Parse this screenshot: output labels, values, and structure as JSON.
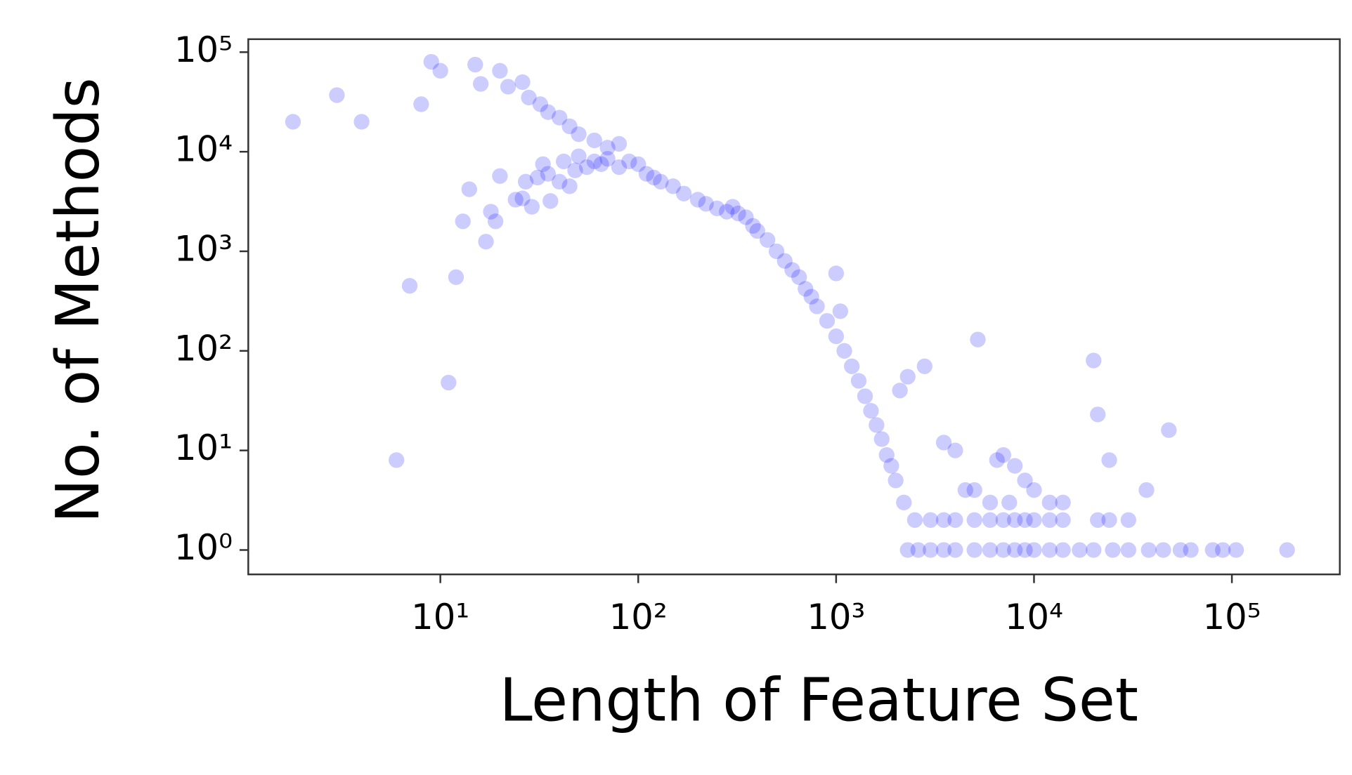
{
  "chart_data": {
    "type": "scatter",
    "x_label": "Length of Feature Set",
    "y_label": "No. of Methods",
    "xlog": true,
    "ylog": true,
    "color": "#0000ff",
    "xlim": [
      1.07,
      351000
    ],
    "ylim": [
      0.569,
      135000
    ],
    "xticks": [
      {
        "value": 10,
        "label": "10¹"
      },
      {
        "value": 100,
        "label": "10²"
      },
      {
        "value": 1000,
        "label": "10³"
      },
      {
        "value": 10000,
        "label": "10⁴"
      },
      {
        "value": 100000,
        "label": "10⁵"
      }
    ],
    "yticks": [
      {
        "value": 1,
        "label": "10⁰"
      },
      {
        "value": 10,
        "label": "10¹"
      },
      {
        "value": 100,
        "label": "10²"
      },
      {
        "value": 1000,
        "label": "10³"
      },
      {
        "value": 10000,
        "label": "10⁴"
      },
      {
        "value": 100000,
        "label": "10⁵"
      }
    ],
    "x": [
      1.8,
      3,
      4,
      8,
      9,
      10,
      15,
      16,
      20,
      22,
      26,
      28,
      32,
      35,
      40,
      45,
      50,
      60,
      70,
      80,
      6,
      7,
      11,
      12,
      13,
      14,
      17,
      18,
      19,
      20,
      24,
      26,
      27,
      29,
      31,
      33,
      35,
      36,
      40,
      42,
      45,
      48,
      50,
      55,
      60,
      65,
      70,
      80,
      90,
      100,
      110,
      120,
      130,
      150,
      170,
      200,
      220,
      250,
      280,
      300,
      320,
      350,
      380,
      400,
      450,
      500,
      550,
      600,
      650,
      700,
      750,
      800,
      900,
      1000,
      1000,
      1050,
      1100,
      1200,
      1300,
      1400,
      1500,
      1600,
      1700,
      1800,
      1900,
      2000,
      2200,
      2100,
      2300,
      2800,
      5200,
      20000,
      21000,
      48000,
      24000,
      37000,
      3500,
      4000,
      6500,
      7000,
      8000,
      9000,
      10000,
      12000,
      14000,
      4500,
      5000,
      6000,
      7500,
      2500,
      3000,
      3500,
      4000,
      5000,
      6000,
      7000,
      8000,
      9000,
      10000,
      12000,
      14000,
      21000,
      24000,
      30000,
      2300,
      2600,
      3000,
      3500,
      4000,
      5000,
      6000,
      7000,
      8000,
      9000,
      10000,
      12000,
      14000,
      17000,
      20000,
      25000,
      30000,
      38000,
      45000,
      55000,
      62000,
      80000,
      90000,
      105000,
      190000
    ],
    "values": [
      20000,
      37000,
      20000,
      30000,
      80000,
      65000,
      75000,
      48000,
      65000,
      45000,
      50000,
      35000,
      30000,
      25000,
      22000,
      18000,
      15000,
      13000,
      11000,
      12000,
      8,
      450,
      48,
      550,
      2000,
      4200,
      1250,
      2500,
      2000,
      5700,
      3300,
      3400,
      5000,
      2800,
      5500,
      7500,
      6000,
      3200,
      5000,
      8000,
      4500,
      6500,
      9000,
      7000,
      8000,
      7500,
      8500,
      7000,
      8000,
      7500,
      6000,
      5500,
      5000,
      4500,
      3800,
      3300,
      3000,
      2700,
      2500,
      2800,
      2400,
      2200,
      1800,
      1600,
      1300,
      1000,
      800,
      650,
      550,
      420,
      350,
      280,
      200,
      600,
      140,
      250,
      100,
      70,
      50,
      35,
      25,
      18,
      13,
      9,
      7,
      5,
      3,
      40,
      55,
      70,
      130,
      80,
      23,
      16,
      8,
      4,
      12,
      10,
      8,
      9,
      7,
      5,
      4,
      3,
      3,
      4,
      4,
      3,
      3,
      2,
      2,
      2,
      2,
      2,
      2,
      2,
      2,
      2,
      2,
      2,
      2,
      2,
      2,
      2,
      1,
      1,
      1,
      1,
      1,
      1,
      1,
      1,
      1,
      1,
      1,
      1,
      1,
      1,
      1,
      1,
      1,
      1,
      1,
      1,
      1,
      1,
      1,
      1,
      1
    ]
  }
}
